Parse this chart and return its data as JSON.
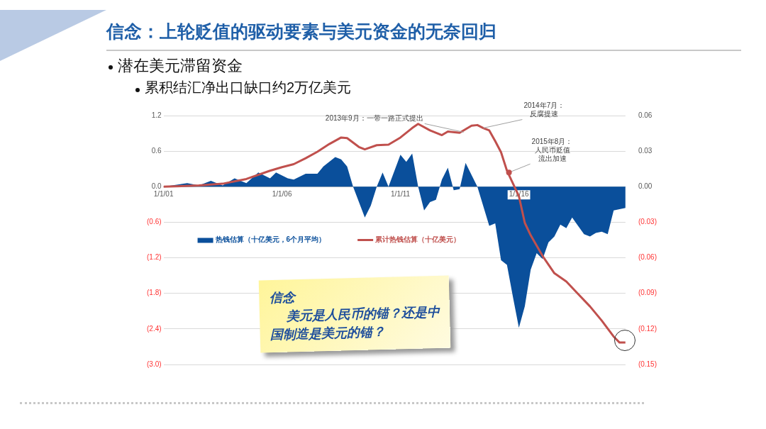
{
  "chart_data": {
    "type": "line",
    "title": "信念：上轮贬值的驱动要素与美元资金的无奈回归",
    "subtitle": "潜在美元滞留资金",
    "xlim": [
      "2001-01",
      "2020-07"
    ],
    "xticks": [
      {
        "value": "2001-01-01",
        "label": "1/1/01"
      },
      {
        "value": "2006-01-01",
        "label": "1/1/06"
      },
      {
        "value": "2011-01-01",
        "label": "1/1/11"
      },
      {
        "value": "2016-01-01",
        "label": "1/1/16"
      }
    ],
    "ylim": [
      -3.0,
      1.2
    ],
    "yticks": [
      {
        "value": -3.0,
        "label": "(3.0)"
      },
      {
        "value": -2.4,
        "label": "(2.4)"
      },
      {
        "value": -1.8,
        "label": "(1.8)"
      },
      {
        "value": -1.2,
        "label": "(1.2)"
      },
      {
        "value": -0.6,
        "label": "(0.6)"
      },
      {
        "value": 0,
        "label": "0.0"
      },
      0.6,
      1.2
    ],
    "y2lim": [
      -0.15,
      0.06
    ],
    "y2ticks": [
      {
        "value": -0.15,
        "label": "(0.15)"
      },
      {
        "value": -0.12,
        "label": "(0.12)"
      },
      {
        "value": -0.09,
        "label": "(0.09)"
      },
      {
        "value": -0.06,
        "label": "(0.06)"
      },
      {
        "value": -0.03,
        "label": "(0.03)"
      },
      {
        "value": 0,
        "label": "0.00"
      },
      0.03,
      0.06
    ],
    "grid": "y",
    "legend": "top",
    "series": [
      {
        "name": "热钱估算（十亿美元，6个月平均）",
        "type": "area",
        "axis": "y2",
        "color": "#0a4f9b",
        "x": [
          "2001-01",
          "2002-01",
          "2002-07",
          "2003-01",
          "2003-07",
          "2004-01",
          "2004-07",
          "2005-01",
          "2005-07",
          "2005-10",
          "2006-04",
          "2006-07",
          "2007-01",
          "2007-07",
          "2007-10",
          "2008-04",
          "2008-07",
          "2008-10",
          "2009-01",
          "2009-07",
          "2009-10",
          "2010-01",
          "2010-04",
          "2010-07",
          "2011-01",
          "2011-04",
          "2011-07",
          "2011-10",
          "2012-01",
          "2012-04",
          "2012-07",
          "2012-10",
          "2013-01",
          "2013-04",
          "2013-07",
          "2013-10",
          "2014-04",
          "2014-10",
          "2015-01",
          "2015-04",
          "2015-07",
          "2015-10",
          "2016-01",
          "2016-04",
          "2016-07",
          "2016-10",
          "2017-01",
          "2017-04",
          "2017-07",
          "2017-10",
          "2018-01",
          "2018-04",
          "2018-07",
          "2018-10",
          "2019-01",
          "2019-04",
          "2019-07",
          "2019-10",
          "2020-01",
          "2020-07"
        ],
        "values": [
          0,
          0.003,
          0.001,
          0.005,
          0.001,
          0.007,
          0.003,
          0.012,
          0.007,
          0.012,
          0.007,
          0.006,
          0.011,
          0.011,
          0.017,
          0.025,
          0.023,
          0.017,
          0,
          -0.026,
          -0.016,
          0,
          0.012,
          0,
          0.027,
          0.021,
          0.028,
          0,
          -0.02,
          -0.013,
          -0.011,
          0.006,
          0.016,
          -0.003,
          -0.002,
          0.02,
          0,
          -0.033,
          -0.031,
          -0.062,
          -0.066,
          -0.093,
          -0.119,
          -0.101,
          -0.07,
          -0.056,
          -0.061,
          -0.047,
          -0.042,
          -0.032,
          -0.035,
          -0.026,
          -0.033,
          -0.04,
          -0.042,
          -0.039,
          -0.038,
          -0.04,
          -0.02,
          -0.018
        ]
      },
      {
        "name": "累计热钱估算（十亿美元）",
        "axis": "y",
        "color": "#c0504d",
        "x": [
          "2001-01",
          "2002-07",
          "2003-07",
          "2004-07",
          "2005-07",
          "2006-01",
          "2006-07",
          "2007-01",
          "2007-07",
          "2008-01",
          "2008-07",
          "2008-10",
          "2009-04",
          "2009-07",
          "2010-01",
          "2010-07",
          "2011-01",
          "2011-07",
          "2011-10",
          "2012-04",
          "2012-10",
          "2013-01",
          "2013-07",
          "2014-01",
          "2014-04",
          "2014-07",
          "2014-10",
          "2015-01",
          "2015-04",
          "2015-07",
          "2016-01",
          "2016-04",
          "2016-07",
          "2017-01",
          "2017-07",
          "2018-01",
          "2018-07",
          "2019-01",
          "2019-07",
          "2020-01",
          "2020-04",
          "2020-07"
        ],
        "values": [
          0,
          0.02,
          0.05,
          0.13,
          0.27,
          0.33,
          0.38,
          0.48,
          0.59,
          0.72,
          0.83,
          0.82,
          0.67,
          0.63,
          0.7,
          0.71,
          0.83,
          0.99,
          1.06,
          0.95,
          0.87,
          0.93,
          0.91,
          1.03,
          1.04,
          0.99,
          0.95,
          0.77,
          0.58,
          0.27,
          -0.16,
          -0.61,
          -0.82,
          -1.17,
          -1.46,
          -1.6,
          -1.81,
          -2.02,
          -2.26,
          -2.53,
          -2.63,
          -2.63
        ]
      }
    ],
    "annotations": [
      "累积结汇净出口缺口约2万亿美元",
      "信念",
      "美元是人民币的锚？还是中国制造是美元的锚？",
      {
        "text": "2013年9月：一带一路正式提出",
        "x": "2013-09",
        "y": 0.92
      },
      {
        "text": "2014年7月：反腐提速",
        "x": "2014-07",
        "y": 0.99
      },
      {
        "text": "2015年8月：人民币贬值流出加速",
        "x": "2015-08",
        "y": 0.24
      }
    ]
  }
}
